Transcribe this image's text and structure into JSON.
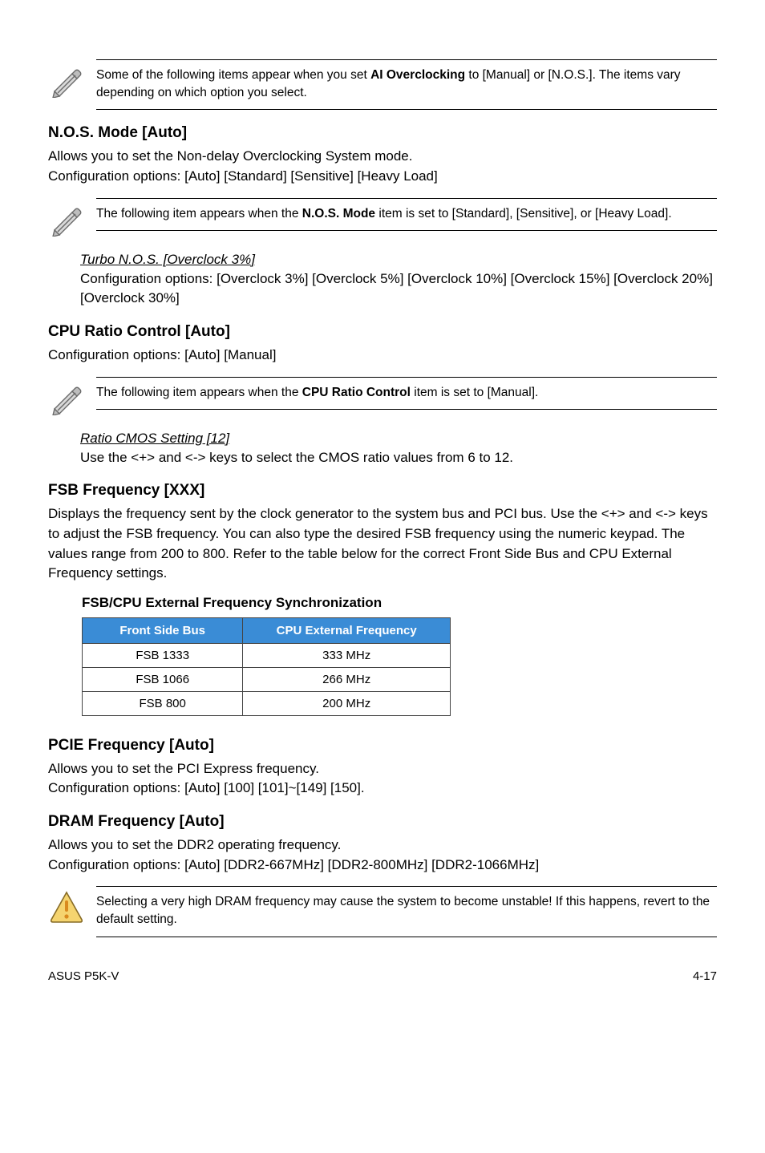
{
  "notes": {
    "note1": "Some of the following items appear when you set <b>AI Overclocking</b> to [Manual] or [N.O.S.]. The items vary depending on which option you select.",
    "note2": "The following item appears when the <b>N.O.S. Mode</b> item is set to [Standard], [Sensitive], or [Heavy Load].",
    "note3": "The following item appears when the <b>CPU Ratio Control</b> item is set to [Manual].",
    "note4": "Selecting a very high DRAM frequency may cause the system to become unstable! If this happens, revert to the default setting."
  },
  "sections": {
    "nos": {
      "heading": "N.O.S. Mode [Auto]",
      "body": "Allows you to set the Non-delay Overclocking System mode.\nConfiguration options: [Auto] [Standard] [Sensitive] [Heavy Load]",
      "sub_title": "Turbo N.O.S. [Overclock 3%]",
      "sub_body": "Configuration options: [Overclock 3%] [Overclock 5%] [Overclock 10%] [Overclock 15%] [Overclock 20%] [Overclock 30%]"
    },
    "cpu": {
      "heading": "CPU Ratio Control [Auto]",
      "body": "Configuration options: [Auto] [Manual]",
      "sub_title": "Ratio CMOS Setting [12]",
      "sub_body": "Use the <+> and <-> keys to select the CMOS ratio values from 6 to 12."
    },
    "fsb": {
      "heading": "FSB Frequency [XXX]",
      "body": "Displays the frequency sent by the clock generator to the system bus and PCI bus. Use the <+> and <-> keys to adjust the FSB frequency. You can also type the desired FSB frequency using the numeric keypad. The values range from 200 to 800. Refer to the table below for the correct Front Side Bus and CPU External Frequency settings."
    },
    "pcie": {
      "heading": "PCIE Frequency [Auto]",
      "body": "Allows you to set the PCI Express frequency.\nConfiguration options: [Auto] [100] [101]~[149] [150]."
    },
    "dram": {
      "heading": "DRAM Frequency [Auto]",
      "body": "Allows you to set the DDR2 operating frequency.\nConfiguration options: [Auto] [DDR2-667MHz] [DDR2-800MHz] [DDR2-1066MHz]"
    }
  },
  "table": {
    "title": "FSB/CPU External Frequency Synchronization",
    "header_bg": "#3a8cd6",
    "columns": [
      "Front Side Bus",
      "CPU External Frequency"
    ],
    "rows": [
      [
        "FSB 1333",
        "333 MHz"
      ],
      [
        "FSB 1066",
        "266 MHz"
      ],
      [
        "FSB 800",
        "200 MHz"
      ]
    ],
    "col_widths": [
      "200px",
      "260px"
    ]
  },
  "icons": {
    "pencil_colors": {
      "stroke": "#6a6a6a",
      "shade": "#bdbdbd",
      "lead_fill": "#d9d9d9"
    },
    "warning_colors": {
      "stroke": "#876b26",
      "fill": "#f5d46f",
      "bang": "#d98a1e"
    }
  },
  "footer": {
    "left": "ASUS P5K-V",
    "right": "4-17"
  }
}
